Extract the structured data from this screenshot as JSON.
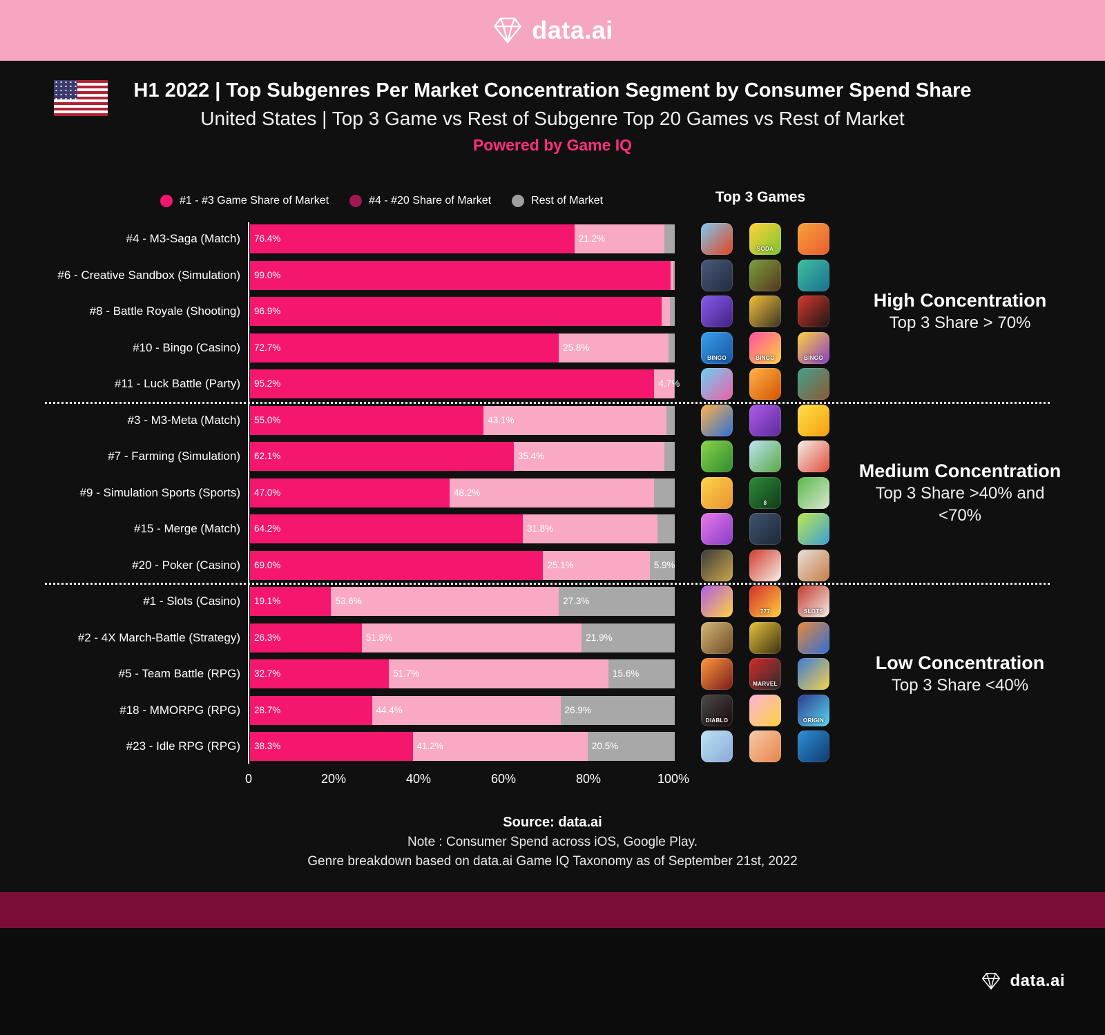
{
  "brand": {
    "name": "data.ai"
  },
  "title": {
    "main": "H1 2022 | Top Subgenres Per Market Concentration Segment by Consumer Spend Share",
    "subtitle": "United States | Top 3 Game vs Rest of Subgenre Top 20 Games vs Rest of Market",
    "powered": "Powered by Game IQ"
  },
  "colors": {
    "top3": "#f5176e",
    "top4_20": "#f9a9c4",
    "rest": "#a8a8a8",
    "accent": "#ff2e7e",
    "band_pink": "#f7a6c1",
    "band_maroon": "#7a0e38"
  },
  "chart_data": {
    "type": "bar",
    "stacked": true,
    "orientation": "horizontal",
    "top3_header": "Top 3 Games",
    "legend": [
      "#1 - #3 Game Share of Market",
      "#4 - #20 Share of Market",
      "Rest of Market"
    ],
    "legend_colors": [
      "#f5176e",
      "#a21653",
      "#9e9e9e"
    ],
    "x_ticks": [
      "0",
      "20%",
      "40%",
      "60%",
      "80%",
      "100%"
    ],
    "xlim": [
      0,
      100
    ],
    "series_names": [
      "#1 - #3 Game Share of Market",
      "#4 - #20 Share of Market",
      "Rest of Market"
    ],
    "groups": [
      {
        "name": "High Concentration",
        "criteria": "Top 3 Share > 70%",
        "rows": [
          {
            "label": "#4 - M3-Saga (Match)",
            "segments": [
              {
                "value": 76.4,
                "label": "76.4%"
              },
              {
                "value": 21.2,
                "label": "21.2%"
              },
              {
                "value": 2.4,
                "label": null
              }
            ],
            "icons": [
              {
                "g": [
                  "#7ec8f2",
                  "#e2431e"
                ]
              },
              {
                "g": [
                  "#ffd23e",
                  "#7cc62a"
                ],
                "t": "SODA"
              },
              {
                "g": [
                  "#f9a13d",
                  "#e85c2e"
                ]
              }
            ]
          },
          {
            "label": "#6 - Creative Sandbox (Simulation)",
            "segments": [
              {
                "value": 99.0,
                "label": "99.0%"
              },
              {
                "value": 0.6,
                "label": null
              },
              {
                "value": 0.4,
                "label": null
              }
            ],
            "icons": [
              {
                "g": [
                  "#4a5a7a",
                  "#222b3d"
                ]
              },
              {
                "g": [
                  "#7aa03c",
                  "#54361f"
                ]
              },
              {
                "g": [
                  "#3fc1a0",
                  "#1a6f8f"
                ]
              }
            ]
          },
          {
            "label": "#8 - Battle Royale (Shooting)",
            "segments": [
              {
                "value": 96.9,
                "label": "96.9%"
              },
              {
                "value": 2.0,
                "label": null
              },
              {
                "value": 1.1,
                "label": null
              }
            ],
            "icons": [
              {
                "g": [
                  "#8a5cf0",
                  "#41207f"
                ]
              },
              {
                "g": [
                  "#f2c13a",
                  "#3a3325"
                ]
              },
              {
                "g": [
                  "#d43a2e",
                  "#201414"
                ]
              }
            ]
          },
          {
            "label": "#10 - Bingo (Casino)",
            "segments": [
              {
                "value": 72.7,
                "label": "72.7%"
              },
              {
                "value": 25.8,
                "label": "25.8%"
              },
              {
                "value": 1.5,
                "label": null
              }
            ],
            "icons": [
              {
                "g": [
                  "#3aa0e8",
                  "#1455a8"
                ],
                "t": "BINGO"
              },
              {
                "g": [
                  "#ff4fa0",
                  "#ffd23e"
                ],
                "t": "BINGO"
              },
              {
                "g": [
                  "#ffd23e",
                  "#8a3cc8"
                ],
                "t": "BINGO"
              }
            ]
          },
          {
            "label": "#11 - Luck Battle (Party)",
            "segments": [
              {
                "value": 95.2,
                "label": "95.2%"
              },
              {
                "value": 4.7,
                "label": "4.7%"
              },
              {
                "value": 0.1,
                "label": null
              }
            ],
            "icons": [
              {
                "g": [
                  "#6ad0f5",
                  "#ef5fa7"
                ]
              },
              {
                "g": [
                  "#ffb347",
                  "#d35400"
                ]
              },
              {
                "g": [
                  "#45a08c",
                  "#8a5a34"
                ]
              }
            ]
          }
        ]
      },
      {
        "name": "Medium Concentration",
        "criteria": "Top 3 Share >40% and <70%",
        "rows": [
          {
            "label": "#3 - M3-Meta (Match)",
            "segments": [
              {
                "value": 55.0,
                "label": "55.0%"
              },
              {
                "value": 43.1,
                "label": "43.1%"
              },
              {
                "value": 1.9,
                "label": null
              }
            ],
            "icons": [
              {
                "g": [
                  "#ffb347",
                  "#2e6fd8"
                ]
              },
              {
                "g": [
                  "#b05ce8",
                  "#5b2a9d"
                ]
              },
              {
                "g": [
                  "#ffe14d",
                  "#f59e0b"
                ]
              }
            ]
          },
          {
            "label": "#7 - Farming (Simulation)",
            "segments": [
              {
                "value": 62.1,
                "label": "62.1%"
              },
              {
                "value": 35.4,
                "label": "35.4%"
              },
              {
                "value": 2.5,
                "label": null
              }
            ],
            "icons": [
              {
                "g": [
                  "#8cd44a",
                  "#2e8b2e"
                ]
              },
              {
                "g": [
                  "#bde4f4",
                  "#5aa843"
                ]
              },
              {
                "g": [
                  "#f5f0e8",
                  "#e04b3a"
                ]
              }
            ]
          },
          {
            "label": "#9 - Simulation Sports (Sports)",
            "segments": [
              {
                "value": 47.0,
                "label": "47.0%"
              },
              {
                "value": 48.2,
                "label": "48.2%"
              },
              {
                "value": 4.8,
                "label": null
              }
            ],
            "icons": [
              {
                "g": [
                  "#ffd54d",
                  "#e8912e"
                ]
              },
              {
                "g": [
                  "#2e8b3a",
                  "#103a18"
                ],
                "t": "8"
              },
              {
                "g": [
                  "#5ab84a",
                  "#d8e8d0"
                ]
              }
            ]
          },
          {
            "label": "#15 - Merge (Match)",
            "segments": [
              {
                "value": 64.2,
                "label": "64.2%"
              },
              {
                "value": 31.8,
                "label": "31.8%"
              },
              {
                "value": 4.0,
                "label": null
              }
            ],
            "icons": [
              {
                "g": [
                  "#e87ae8",
                  "#8a3cc8"
                ]
              },
              {
                "g": [
                  "#41546e",
                  "#1d2738"
                ]
              },
              {
                "g": [
                  "#bfe84d",
                  "#3a9ed8"
                ]
              }
            ]
          },
          {
            "label": "#20 - Poker (Casino)",
            "segments": [
              {
                "value": 69.0,
                "label": "69.0%"
              },
              {
                "value": 25.1,
                "label": "25.1%"
              },
              {
                "value": 5.9,
                "label": "5.9%"
              }
            ],
            "icons": [
              {
                "g": [
                  "#3a3a3a",
                  "#caa84a"
                ]
              },
              {
                "g": [
                  "#d43a2e",
                  "#f5f0e8"
                ]
              },
              {
                "g": [
                  "#e8e0d8",
                  "#c77d4a"
                ]
              }
            ]
          }
        ]
      },
      {
        "name": "Low Concentration",
        "criteria": "Top 3 Share <40%",
        "rows": [
          {
            "label": "#1 - Slots (Casino)",
            "segments": [
              {
                "value": 19.1,
                "label": "19.1%"
              },
              {
                "value": 53.6,
                "label": "53.6%"
              },
              {
                "value": 27.3,
                "label": "27.3%"
              }
            ],
            "icons": [
              {
                "g": [
                  "#b05ce8",
                  "#ffd23e"
                ]
              },
              {
                "g": [
                  "#d42b2b",
                  "#ffd23e"
                ],
                "t": "777"
              },
              {
                "g": [
                  "#c0392b",
                  "#f5f0e8"
                ],
                "t": "SLOTS"
              }
            ]
          },
          {
            "label": "#2 - 4X March-Battle (Strategy)",
            "segments": [
              {
                "value": 26.3,
                "label": "26.3%"
              },
              {
                "value": 51.8,
                "label": "51.8%"
              },
              {
                "value": 21.9,
                "label": "21.9%"
              }
            ],
            "icons": [
              {
                "g": [
                  "#d8b878",
                  "#6a4a24"
                ]
              },
              {
                "g": [
                  "#e8c53a",
                  "#3a2f12"
                ]
              },
              {
                "g": [
                  "#e8883a",
                  "#2e6fd8"
                ]
              }
            ]
          },
          {
            "label": "#5 - Team Battle (RPG)",
            "segments": [
              {
                "value": 32.7,
                "label": "32.7%"
              },
              {
                "value": 51.7,
                "label": "51.7%"
              },
              {
                "value": 15.6,
                "label": "15.6%"
              }
            ],
            "icons": [
              {
                "g": [
                  "#ff9a3d",
                  "#7a1a1a"
                ]
              },
              {
                "g": [
                  "#d42b2b",
                  "#2b2b2b"
                ],
                "t": "MARVEL"
              },
              {
                "g": [
                  "#3a7ad8",
                  "#f5d34a"
                ]
              }
            ]
          },
          {
            "label": "#18 - MMORPG (RPG)",
            "segments": [
              {
                "value": 28.7,
                "label": "28.7%"
              },
              {
                "value": 44.4,
                "label": "44.4%"
              },
              {
                "value": 26.9,
                "label": "26.9%"
              }
            ],
            "icons": [
              {
                "g": [
                  "#4a4a4a",
                  "#1a0a0a"
                ],
                "t": "DIABLO"
              },
              {
                "g": [
                  "#f8b3d9",
                  "#ffd23e"
                ]
              },
              {
                "g": [
                  "#2b3a8c",
                  "#5ad8f2"
                ],
                "t": "ORIGIN"
              }
            ]
          },
          {
            "label": "#23 - Idle RPG (RPG)",
            "segments": [
              {
                "value": 38.3,
                "label": "38.3%"
              },
              {
                "value": 41.2,
                "label": "41.2%"
              },
              {
                "value": 20.5,
                "label": "20.5%"
              }
            ],
            "icons": [
              {
                "g": [
                  "#bde4f4",
                  "#8aa8d8"
                ]
              },
              {
                "g": [
                  "#f5cba7",
                  "#e8834a"
                ]
              },
              {
                "g": [
                  "#2e8fd8",
                  "#0f3a6e"
                ]
              }
            ]
          }
        ]
      }
    ]
  },
  "footer": {
    "source": "Source: data.ai",
    "note1": "Note : Consumer Spend across iOS, Google Play.",
    "note2": "Genre breakdown based on data.ai Game IQ Taxonomy as of September 21st, 2022"
  }
}
